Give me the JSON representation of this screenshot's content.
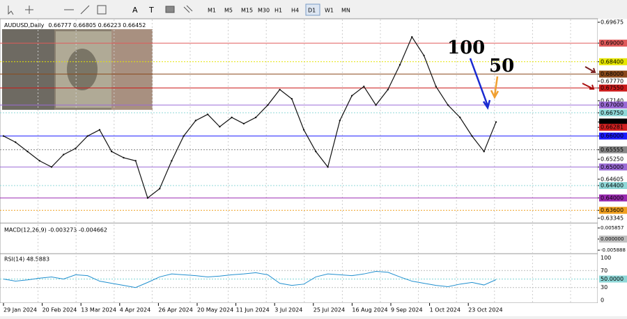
{
  "toolbar": {
    "timeframes": [
      "M1",
      "M5",
      "M15",
      "M30",
      "H1",
      "H4",
      "D1",
      "W1",
      "MN"
    ]
  },
  "chart": {
    "header": "AUDUSD,Daily",
    "ohlc": "0.66777 0.66805 0.66223 0.66452",
    "ylim": [
      0.63345,
      0.69675
    ],
    "yticks": [
      {
        "value": 0.69675,
        "label": "0.69675"
      },
      {
        "value": 0.69,
        "label": "0.69000",
        "color": "#e05a5a",
        "style": "solid"
      },
      {
        "value": 0.684,
        "label": "0.68400",
        "color": "#e6e600",
        "style": "dotted"
      },
      {
        "value": 0.68,
        "label": "0.68000",
        "color": "#8b4a1c",
        "style": "solid"
      },
      {
        "value": 0.6777,
        "label": "0.67770"
      },
      {
        "value": 0.6755,
        "label": "0.67550",
        "color": "#cc1a1a",
        "style": "solid"
      },
      {
        "value": 0.6714,
        "label": "0.67140"
      },
      {
        "value": 0.67,
        "label": "0.67000",
        "color": "#9a6ad6",
        "style": "solid"
      },
      {
        "value": 0.6675,
        "label": "0.66750",
        "color": "#8fd8d8",
        "style": "dotted"
      },
      {
        "value": 0.66452,
        "label": "0.66452",
        "color": "#000000",
        "style": "none"
      },
      {
        "value": 0.66281,
        "label": "0.66281",
        "color": "#d02020",
        "style": "none"
      },
      {
        "value": 0.66,
        "label": "0.66000",
        "color": "#1a1aff",
        "style": "solid"
      },
      {
        "value": 0.65555,
        "label": "0.65555",
        "color": "#888888",
        "style": "dotted"
      },
      {
        "value": 0.6525,
        "label": "0.65250"
      },
      {
        "value": 0.65,
        "label": "0.65000",
        "color": "#9a6ad6",
        "style": "solid"
      },
      {
        "value": 0.64605,
        "label": "0.64605"
      },
      {
        "value": 0.644,
        "label": "0.64400",
        "color": "#8fd8d8",
        "style": "dotted"
      },
      {
        "value": 0.64,
        "label": "0.64000",
        "color": "#9a2ab0",
        "style": "solid"
      },
      {
        "value": 0.636,
        "label": "0.63600",
        "color": "#f0a020",
        "style": "dotted"
      },
      {
        "value": 0.63345,
        "label": "0.63345"
      }
    ],
    "dates": [
      "29 Jan 2024",
      "20 Feb 2024",
      "13 Mar 2024",
      "4 Apr 2024",
      "26 Apr 2024",
      "20 May 2024",
      "11 Jun 2024",
      "3 Jul 2024",
      "25 Jul 2024",
      "16 Aug 2024",
      "9 Sep 2024",
      "1 Oct 2024",
      "23 Oct 2024"
    ],
    "close": [
      0.66,
      0.658,
      0.655,
      0.652,
      0.65,
      0.654,
      0.656,
      0.66,
      0.662,
      0.655,
      0.653,
      0.652,
      0.64,
      0.643,
      0.652,
      0.66,
      0.665,
      0.667,
      0.663,
      0.666,
      0.664,
      0.666,
      0.67,
      0.675,
      0.672,
      0.662,
      0.655,
      0.65,
      0.665,
      0.673,
      0.676,
      0.67,
      0.675,
      0.683,
      0.692,
      0.686,
      0.676,
      0.67,
      0.666,
      0.66,
      0.655,
      0.66452
    ],
    "annotations": [
      {
        "text": "100",
        "color": "#1a2ad0"
      },
      {
        "text": "50",
        "color": "#f0a030"
      }
    ]
  },
  "macd": {
    "label": "MACD(12,26,9) -0.003273 -0.004662",
    "ylim": [
      -0.005888,
      0.005857
    ],
    "yticks": [
      {
        "value": 0.005857,
        "label": "0.005857"
      },
      {
        "value": 0,
        "label": "0.000000"
      },
      {
        "value": -0.005888,
        "label": "-0.005888"
      }
    ]
  },
  "rsi": {
    "label": "RSI(14) 48.5883",
    "ylim": [
      0,
      100
    ],
    "yticks": [
      100,
      70,
      {
        "value": 50,
        "label": "50.0000"
      },
      30,
      0
    ],
    "values": [
      50,
      45,
      48,
      52,
      55,
      50,
      60,
      58,
      45,
      40,
      35,
      30,
      42,
      55,
      62,
      60,
      58,
      55,
      57,
      60,
      62,
      65,
      60,
      40,
      35,
      38,
      55,
      62,
      60,
      58,
      62,
      68,
      66,
      55,
      45,
      40,
      35,
      32,
      38,
      42,
      36,
      48.5883
    ]
  }
}
